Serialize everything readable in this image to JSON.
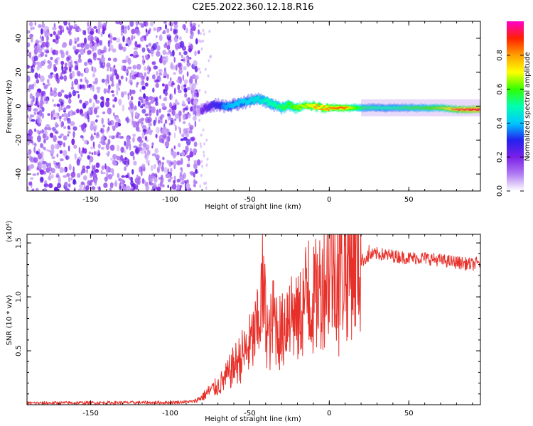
{
  "figure": {
    "title": "C2E5.2022.360.12.18.R16"
  },
  "colors": {
    "snr_line": "#e8302a",
    "frame": "#000000",
    "background": "#ffffff"
  },
  "colorbar": {
    "label": "Normalized spectral amplitude",
    "ticks": [
      "0.0",
      "0.2",
      "0.4",
      "0.6",
      "0.8"
    ],
    "tick_values": [
      0,
      0.2,
      0.4,
      0.6,
      0.8
    ],
    "range": [
      0,
      1
    ],
    "colormap": [
      "#ffffff",
      "#b07cf2",
      "#7a1fe8",
      "#2222ee",
      "#00c8ff",
      "#00ffb0",
      "#33ff00",
      "#ffff00",
      "#ffa000",
      "#ff2000",
      "#ff00cc"
    ]
  },
  "chart_data": [
    {
      "type": "heatmap",
      "title": "",
      "xlabel": "Height of straight line (km)",
      "ylabel": "Frequency (Hz)",
      "xlim": [
        -190,
        95
      ],
      "ylim": [
        -50,
        50
      ],
      "x_ticks": [
        -150,
        -100,
        -50,
        0,
        50
      ],
      "y_ticks": [
        -40,
        -20,
        0,
        20,
        40
      ],
      "noise_region_x": [
        -190,
        -82
      ],
      "signal_track": {
        "x": [
          -85,
          -80,
          -75,
          -70,
          -65,
          -60,
          -55,
          -50,
          -45,
          -40,
          -35,
          -30,
          -25,
          -20,
          -15,
          -10,
          -5,
          0,
          5,
          10,
          20,
          30,
          40,
          50,
          60,
          70,
          80,
          90,
          95
        ],
        "freq": [
          -3,
          -2,
          0,
          1,
          0,
          1,
          2,
          3,
          4,
          3,
          1,
          -1,
          1,
          -1,
          0,
          0,
          -1,
          -1,
          -1,
          -1,
          -1,
          -1,
          -1,
          -1,
          -1,
          -1,
          -2,
          -2,
          -2
        ],
        "amplitude": [
          0.08,
          0.2,
          0.28,
          0.32,
          0.38,
          0.4,
          0.42,
          0.45,
          0.48,
          0.5,
          0.5,
          0.55,
          0.6,
          0.7,
          0.75,
          0.8,
          0.8,
          0.82,
          0.85,
          0.85,
          0.55,
          0.5,
          0.5,
          0.55,
          0.6,
          0.7,
          0.85,
          0.95,
          0.95
        ]
      }
    },
    {
      "type": "line",
      "title": "",
      "xlabel": "Height of straight line (km)",
      "ylabel": "SNR (10 * v/v)",
      "scale_label": "(x10⁴)",
      "xlim": [
        -190,
        95
      ],
      "ylim": [
        0,
        15800
      ],
      "x_ticks": [
        -150,
        -100,
        -50,
        0,
        50
      ],
      "y_ticks": [
        5000,
        10000,
        15000
      ],
      "y_tick_labels": [
        "0.5",
        "1.0",
        "1.5"
      ],
      "series": [
        {
          "name": "",
          "x": [
            -190,
            -150,
            -100,
            -85,
            -80,
            -75,
            -70,
            -65,
            -60,
            -55,
            -50,
            -45,
            -42,
            -38,
            -35,
            -30,
            -25,
            -20,
            -15,
            -10,
            -5,
            0,
            5,
            10,
            15,
            20,
            25,
            30,
            40,
            50,
            60,
            70,
            80,
            90,
            95
          ],
          "y": [
            150,
            180,
            200,
            300,
            700,
            1300,
            1700,
            2500,
            3600,
            4500,
            5500,
            7000,
            10500,
            6000,
            8000,
            6500,
            9000,
            7500,
            10000,
            9500,
            11000,
            12500,
            13000,
            12500,
            13500,
            13300,
            13800,
            14000,
            13800,
            13600,
            13600,
            13400,
            13200,
            13000,
            13200
          ],
          "spikes": [
            {
              "x": -52,
              "y": 4200
            },
            {
              "x": -45,
              "y": 10300
            },
            {
              "x": -40,
              "y": 10900
            },
            {
              "x": -35,
              "y": 11500
            },
            {
              "x": -28,
              "y": 9800
            },
            {
              "x": -25,
              "y": 11000
            },
            {
              "x": -20,
              "y": 10800
            },
            {
              "x": -13,
              "y": 15200
            },
            {
              "x": -8,
              "y": 12200
            },
            {
              "x": 5,
              "y": 14300
            },
            {
              "x": 10,
              "y": 15800
            },
            {
              "x": 25,
              "y": 14800
            }
          ],
          "dips": [
            {
              "x": 6,
              "y": 4500
            },
            {
              "x": 2,
              "y": 7600
            },
            {
              "x": -3,
              "y": 5500
            }
          ]
        }
      ]
    }
  ]
}
